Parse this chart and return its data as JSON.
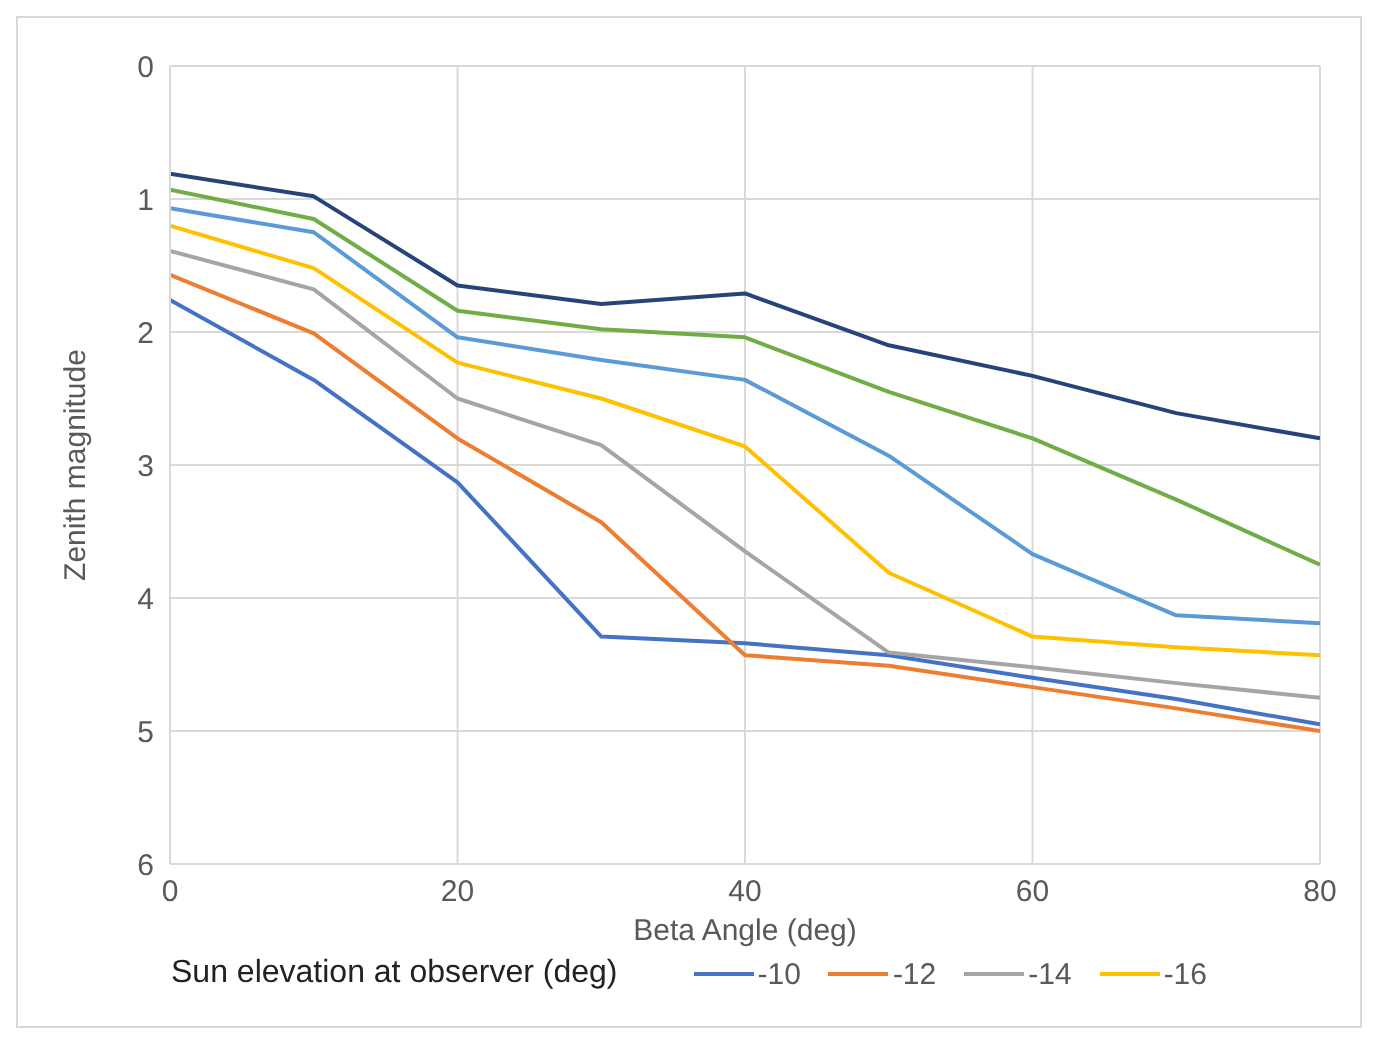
{
  "chart_data": {
    "type": "line",
    "xlabel": "Beta Angle (deg)",
    "ylabel": "Zenith magnitude",
    "legend_title": "Sun elevation at observer (deg)",
    "x": [
      0,
      10,
      20,
      30,
      40,
      50,
      60,
      70,
      80
    ],
    "series": [
      {
        "name": "-10",
        "color": "#4472c4",
        "values": [
          1.76,
          2.36,
          3.13,
          4.29,
          4.34,
          4.43,
          4.6,
          4.76,
          4.95
        ]
      },
      {
        "name": "-12",
        "color": "#ed7d31",
        "values": [
          1.57,
          2.01,
          2.8,
          3.43,
          4.43,
          4.51,
          4.67,
          4.83,
          5.0
        ]
      },
      {
        "name": "-14",
        "color": "#a5a5a5",
        "values": [
          1.39,
          1.68,
          2.5,
          2.85,
          3.65,
          4.41,
          4.52,
          4.64,
          4.75
        ]
      },
      {
        "name": "-16",
        "color": "#ffc000",
        "values": [
          1.2,
          1.52,
          2.23,
          2.5,
          2.86,
          3.81,
          4.29,
          4.37,
          4.43
        ]
      },
      {
        "color": "#5b9bd5",
        "values": [
          1.07,
          1.25,
          2.04,
          2.21,
          2.36,
          2.93,
          3.67,
          4.13,
          4.19
        ]
      },
      {
        "color": "#70ad47",
        "values": [
          0.93,
          1.15,
          1.84,
          1.98,
          2.04,
          2.45,
          2.8,
          3.26,
          3.75
        ]
      },
      {
        "color": "#264478",
        "values": [
          0.81,
          0.98,
          1.65,
          1.79,
          1.71,
          2.1,
          2.33,
          2.61,
          2.8
        ]
      }
    ],
    "xlim": [
      0,
      80
    ],
    "xticks": [
      0,
      20,
      40,
      60,
      80
    ],
    "ylim": [
      6,
      0
    ],
    "yticks": [
      0,
      1,
      2,
      3,
      4,
      5,
      6
    ],
    "grid": true,
    "legend": "bottom",
    "marker": "none",
    "line_style": "solid"
  }
}
